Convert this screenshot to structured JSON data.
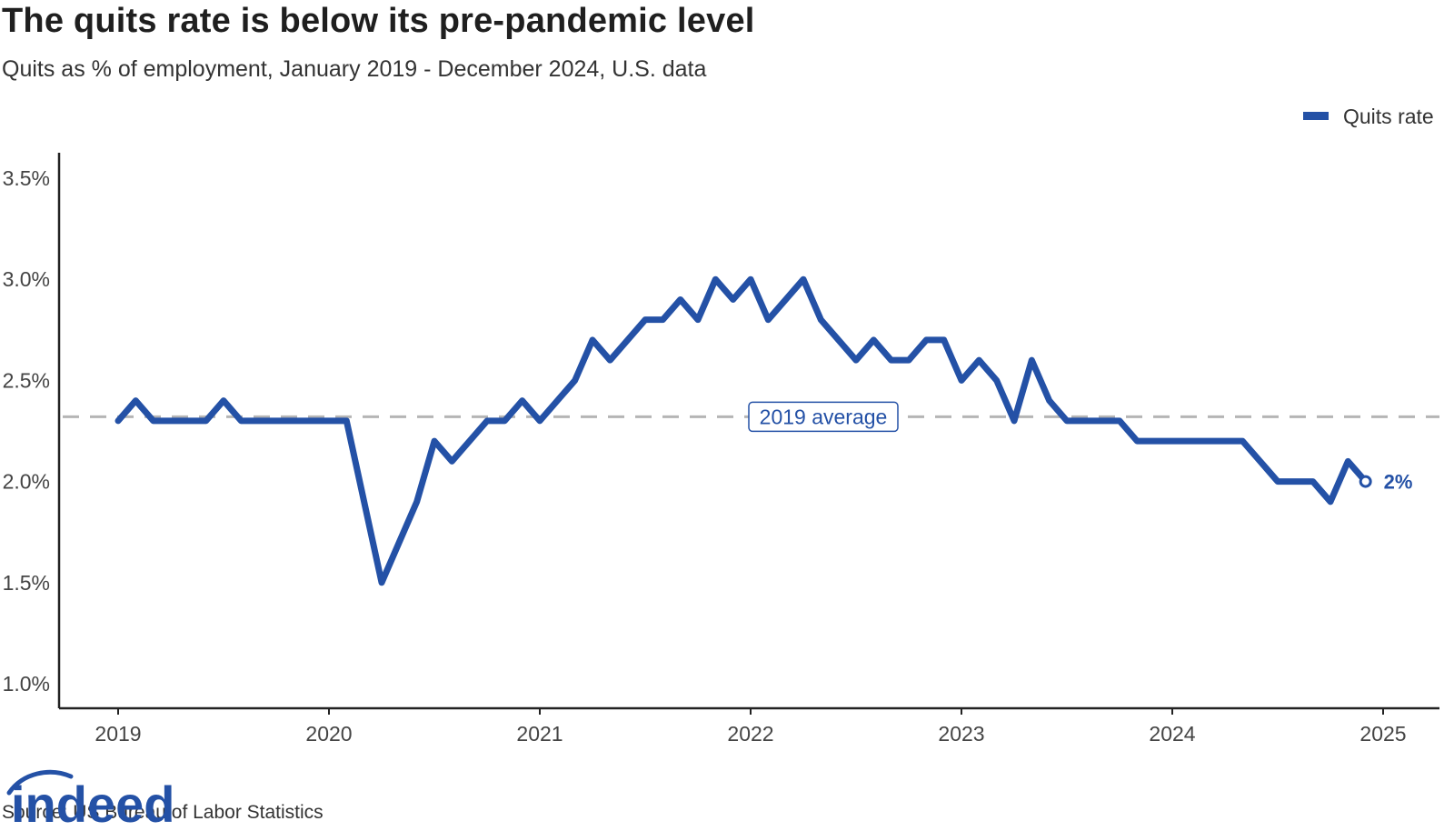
{
  "title": "The quits rate is below its pre-pandemic level",
  "subtitle": "Quits as % of employment, January 2019 - December 2024, U.S. data",
  "source": "Source: US Bureau of Labor Statistics",
  "logo_text": "indeed",
  "colors": {
    "line": "#2451a6",
    "reference": "#b5b5b5",
    "axis": "#222222"
  },
  "chart_data": {
    "type": "line",
    "xlabel": "",
    "ylabel": "",
    "ylim": [
      1.0,
      3.6
    ],
    "xlim": [
      "2019-01",
      "2025-01"
    ],
    "y_ticks": [
      1.0,
      1.5,
      2.0,
      2.5,
      3.0,
      3.5
    ],
    "y_tick_labels": [
      "1.0%",
      "1.5%",
      "2.0%",
      "2.5%",
      "3.0%",
      "3.5%"
    ],
    "x_ticks": [
      "2019-01",
      "2020-01",
      "2021-01",
      "2022-01",
      "2023-01",
      "2024-01",
      "2025-01"
    ],
    "x_tick_labels": [
      "2019",
      "2020",
      "2021",
      "2022",
      "2023",
      "2024",
      "2025"
    ],
    "grid": false,
    "legend": {
      "position": "top-right",
      "entries": [
        "Quits rate"
      ]
    },
    "reference_line": {
      "value": 2.32,
      "label": "2019 average",
      "style": "dashed"
    },
    "end_label": {
      "x": "2024-12",
      "text": "2%"
    },
    "series": [
      {
        "name": "Quits rate",
        "x": [
          "2019-01",
          "2019-02",
          "2019-03",
          "2019-04",
          "2019-05",
          "2019-06",
          "2019-07",
          "2019-08",
          "2019-09",
          "2019-10",
          "2019-11",
          "2019-12",
          "2020-01",
          "2020-02",
          "2020-03",
          "2020-04",
          "2020-05",
          "2020-06",
          "2020-07",
          "2020-08",
          "2020-09",
          "2020-10",
          "2020-11",
          "2020-12",
          "2021-01",
          "2021-02",
          "2021-03",
          "2021-04",
          "2021-05",
          "2021-06",
          "2021-07",
          "2021-08",
          "2021-09",
          "2021-10",
          "2021-11",
          "2021-12",
          "2022-01",
          "2022-02",
          "2022-03",
          "2022-04",
          "2022-05",
          "2022-06",
          "2022-07",
          "2022-08",
          "2022-09",
          "2022-10",
          "2022-11",
          "2022-12",
          "2023-01",
          "2023-02",
          "2023-03",
          "2023-04",
          "2023-05",
          "2023-06",
          "2023-07",
          "2023-08",
          "2023-09",
          "2023-10",
          "2023-11",
          "2023-12",
          "2024-01",
          "2024-02",
          "2024-03",
          "2024-04",
          "2024-05",
          "2024-06",
          "2024-07",
          "2024-08",
          "2024-09",
          "2024-10",
          "2024-11",
          "2024-12"
        ],
        "values": [
          2.3,
          2.4,
          2.3,
          2.3,
          2.3,
          2.3,
          2.4,
          2.3,
          2.3,
          2.3,
          2.3,
          2.3,
          2.3,
          2.3,
          1.9,
          1.5,
          1.7,
          1.9,
          2.2,
          2.1,
          2.2,
          2.3,
          2.3,
          2.4,
          2.3,
          2.4,
          2.5,
          2.7,
          2.6,
          2.7,
          2.8,
          2.8,
          2.9,
          2.8,
          3.0,
          2.9,
          3.0,
          2.8,
          2.9,
          3.0,
          2.8,
          2.7,
          2.6,
          2.7,
          2.6,
          2.6,
          2.7,
          2.7,
          2.5,
          2.6,
          2.5,
          2.3,
          2.6,
          2.4,
          2.3,
          2.3,
          2.3,
          2.3,
          2.2,
          2.2,
          2.2,
          2.2,
          2.2,
          2.2,
          2.2,
          2.1,
          2.0,
          2.0,
          2.0,
          1.9,
          2.1,
          2.0
        ]
      }
    ]
  }
}
